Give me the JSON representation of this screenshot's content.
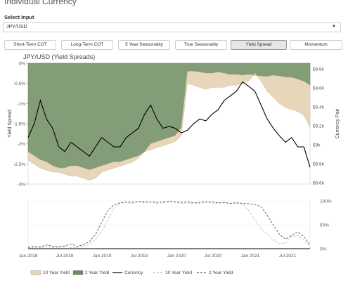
{
  "page": {
    "title": "Individual Currency",
    "select_label": "Select Input",
    "select_value": "JPY/USD"
  },
  "tabs": [
    {
      "label": "Short-Term COT",
      "active": false
    },
    {
      "label": "Long-Term COT",
      "active": false
    },
    {
      "label": "5 Year Seasonality",
      "active": false
    },
    {
      "label": "True Seasonality",
      "active": false
    },
    {
      "label": "Yield Spread",
      "active": true
    },
    {
      "label": "Momentum",
      "active": false
    }
  ],
  "colors": {
    "ten_year": "#e8d6bb",
    "two_year": "#6b8a60",
    "two_year_fill": "#839d79",
    "currency": "#000000"
  },
  "chart_data": [
    {
      "type": "area",
      "title": "JPY/USD (Yield Spreads)",
      "ylabel": "Yield Spread",
      "y2label": "Currency Pair",
      "ylim": [
        -3,
        0
      ],
      "y2lim": [
        8.6,
        9.9
      ],
      "yticks": [
        "0%",
        "-0.5%",
        "-1%",
        "-1.5%",
        "-2%",
        "-2.5%",
        "-3%"
      ],
      "y2ticks": [
        "$9.8k",
        "$9.6k",
        "$9.4k",
        "$9.2k",
        "$9k",
        "$8.8k",
        "$8.6k"
      ],
      "x": [
        "2018-01",
        "2018-02",
        "2018-03",
        "2018-04",
        "2018-05",
        "2018-06",
        "2018-07",
        "2018-08",
        "2018-09",
        "2018-10",
        "2018-11",
        "2018-12",
        "2019-01",
        "2019-02",
        "2019-03",
        "2019-04",
        "2019-05",
        "2019-06",
        "2019-07",
        "2019-08",
        "2019-09",
        "2019-10",
        "2019-11",
        "2019-12",
        "2020-01",
        "2020-02",
        "2020-03",
        "2020-04",
        "2020-05",
        "2020-06",
        "2020-07",
        "2020-08",
        "2020-09",
        "2020-10",
        "2020-11",
        "2020-12",
        "2021-01",
        "2021-02",
        "2021-03",
        "2021-04",
        "2021-05",
        "2021-06",
        "2021-07",
        "2021-08",
        "2021-09",
        "2021-10",
        "2021-11"
      ],
      "series": [
        {
          "name": "10 Year Yield",
          "values": [
            -2.2,
            -2.3,
            -2.4,
            -2.45,
            -2.55,
            -2.6,
            -2.6,
            -2.55,
            -2.55,
            -2.6,
            -2.65,
            -2.6,
            -2.55,
            -2.5,
            -2.45,
            -2.45,
            -2.4,
            -2.35,
            -2.3,
            -2.2,
            -2.15,
            -2.1,
            -2.05,
            -2.0,
            -1.95,
            -1.8,
            -0.5,
            -0.55,
            -0.6,
            -0.65,
            -0.6,
            -0.6,
            -0.6,
            -0.55,
            -0.55,
            -0.5,
            -0.45,
            -0.25,
            -0.45,
            -0.7,
            -0.85,
            -1.0,
            -1.1,
            -1.15,
            -1.2,
            -1.3,
            -1.6
          ]
        },
        {
          "name": "2 Year Yield",
          "values": [
            -2.4,
            -2.5,
            -2.6,
            -2.65,
            -2.7,
            -2.7,
            -2.75,
            -2.8,
            -2.8,
            -2.85,
            -2.9,
            -2.85,
            -2.7,
            -2.65,
            -2.6,
            -2.55,
            -2.5,
            -2.45,
            -2.35,
            -2.2,
            -2.0,
            -1.95,
            -1.9,
            -1.85,
            -1.8,
            -1.6,
            -0.2,
            -0.2,
            -0.22,
            -0.25,
            -0.25,
            -0.22,
            -0.25,
            -0.28,
            -0.28,
            -0.3,
            -0.28,
            -0.3,
            -0.32,
            -0.33,
            -0.3,
            -0.32,
            -0.35,
            -0.35,
            -0.4,
            -0.45,
            -0.55
          ]
        },
        {
          "name": "Currency",
          "axis": "right",
          "values": [
            9.1,
            9.25,
            9.5,
            9.3,
            9.2,
            9.0,
            8.95,
            9.05,
            9.0,
            8.95,
            8.9,
            9.0,
            9.1,
            9.05,
            9.0,
            9.0,
            9.1,
            9.15,
            9.2,
            9.35,
            9.45,
            9.3,
            9.2,
            9.22,
            9.2,
            9.15,
            9.18,
            9.25,
            9.3,
            9.28,
            9.35,
            9.4,
            9.5,
            9.55,
            9.6,
            9.7,
            9.65,
            9.6,
            9.45,
            9.3,
            9.2,
            9.12,
            9.05,
            9.1,
            9.0,
            9.0,
            8.78
          ]
        }
      ]
    },
    {
      "type": "line",
      "yticks": [
        "100%",
        "50%",
        "0%"
      ],
      "ylim": [
        0,
        100
      ],
      "x": [
        "2018-01",
        "2018-02",
        "2018-03",
        "2018-04",
        "2018-05",
        "2018-06",
        "2018-07",
        "2018-08",
        "2018-09",
        "2018-10",
        "2018-11",
        "2018-12",
        "2019-01",
        "2019-02",
        "2019-03",
        "2019-04",
        "2019-05",
        "2019-06",
        "2019-07",
        "2019-08",
        "2019-09",
        "2019-10",
        "2019-11",
        "2019-12",
        "2020-01",
        "2020-02",
        "2020-03",
        "2020-04",
        "2020-05",
        "2020-06",
        "2020-07",
        "2020-08",
        "2020-09",
        "2020-10",
        "2020-11",
        "2020-12",
        "2021-01",
        "2021-02",
        "2021-03",
        "2021-04",
        "2021-05",
        "2021-06",
        "2021-07",
        "2021-08",
        "2021-09",
        "2021-10",
        "2021-11"
      ],
      "xtick_labels": [
        "Jan 2018",
        "Jul 2018",
        "Jan 2019",
        "Jul 2019",
        "Jan 2020",
        "Jul 2020",
        "Jan 2021",
        "Jul 2021"
      ],
      "legend_position": "bottom",
      "series": [
        {
          "name": "Currency",
          "style": "solid",
          "values": [
            0,
            0,
            0,
            0,
            0,
            0,
            0,
            0,
            0,
            0,
            0,
            0,
            0,
            0,
            0,
            0,
            0,
            0,
            0,
            0,
            0,
            0,
            0,
            0,
            0,
            0,
            0,
            0,
            0,
            0,
            0,
            0,
            0,
            0,
            0,
            0,
            0,
            0,
            0,
            0,
            0,
            0,
            0,
            0,
            0,
            0,
            0
          ]
        },
        {
          "name": "10 Year Yield",
          "style": "dashed-light",
          "values": [
            2,
            3,
            2,
            5,
            3,
            3,
            4,
            3,
            2,
            5,
            8,
            20,
            35,
            60,
            85,
            95,
            97,
            95,
            98,
            96,
            97,
            95,
            96,
            98,
            97,
            95,
            96,
            94,
            95,
            97,
            96,
            95,
            96,
            94,
            95,
            93,
            80,
            60,
            42,
            30,
            18,
            10,
            12,
            25,
            28,
            18,
            5
          ]
        },
        {
          "name": "2 Year Yield",
          "style": "dashed",
          "values": [
            3,
            5,
            4,
            8,
            5,
            4,
            6,
            10,
            5,
            8,
            15,
            30,
            55,
            80,
            92,
            96,
            98,
            97,
            99,
            98,
            98,
            97,
            98,
            99,
            98,
            97,
            98,
            96,
            97,
            98,
            98,
            96,
            97,
            95,
            96,
            95,
            94,
            92,
            88,
            70,
            50,
            30,
            20,
            28,
            35,
            25,
            8
          ]
        }
      ]
    }
  ]
}
